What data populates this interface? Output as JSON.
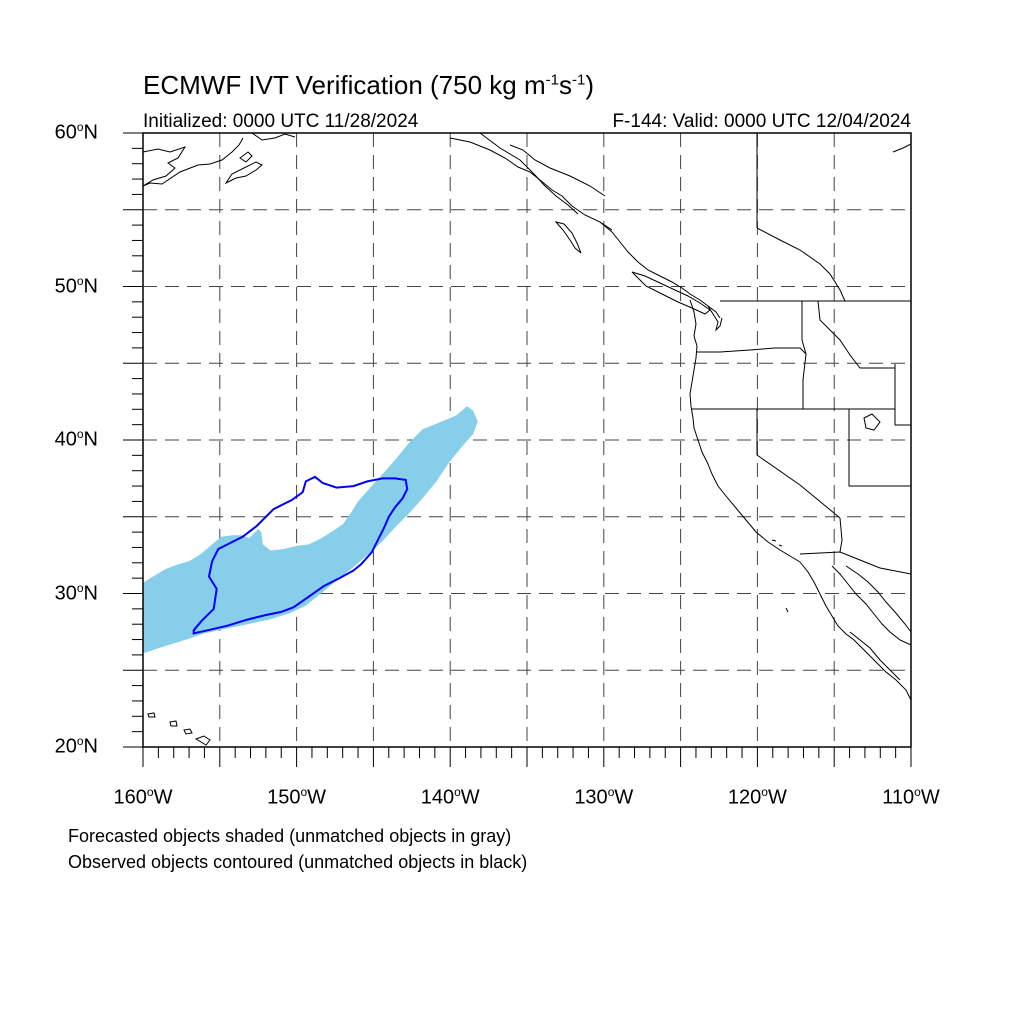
{
  "header": {
    "title_main": "ECMWF IVT Verification (750 kg m",
    "title_sup1": "-1",
    "title_mid": "s",
    "title_sup2": "-1",
    "title_end": ")",
    "initialized": "Initialized: 0000 UTC 11/28/2024",
    "valid": "F-144: Valid: 0000 UTC 12/04/2024"
  },
  "map": {
    "lon_range": [
      -160,
      -110
    ],
    "lat_range": [
      20,
      60
    ],
    "grid_lon_step": 5,
    "grid_lat_step": 5,
    "grid": "dashed",
    "land_color": "#ffffff",
    "coast_color": "#000000"
  },
  "axes": {
    "y_labels": [
      {
        "lat": 60,
        "num": "60",
        "sup": "o",
        "dir": "N"
      },
      {
        "lat": 50,
        "num": "50",
        "sup": "o",
        "dir": "N"
      },
      {
        "lat": 40,
        "num": "40",
        "sup": "o",
        "dir": "N"
      },
      {
        "lat": 30,
        "num": "30",
        "sup": "o",
        "dir": "N"
      },
      {
        "lat": 20,
        "num": "20",
        "sup": "o",
        "dir": "N"
      }
    ],
    "x_labels": [
      {
        "lon": -160,
        "num": "160",
        "sup": "o",
        "dir": "W"
      },
      {
        "lon": -150,
        "num": "150",
        "sup": "o",
        "dir": "W"
      },
      {
        "lon": -140,
        "num": "140",
        "sup": "o",
        "dir": "W"
      },
      {
        "lon": -130,
        "num": "130",
        "sup": "o",
        "dir": "W"
      },
      {
        "lon": -120,
        "num": "120",
        "sup": "o",
        "dir": "W"
      },
      {
        "lon": -110,
        "num": "110",
        "sup": "o",
        "dir": "W"
      }
    ]
  },
  "objects": {
    "forecast_color": "#87ceea",
    "observed_color": "#0000ff",
    "forecast_shape": [
      [
        -160,
        30.7
      ],
      [
        -159.2,
        31.2
      ],
      [
        -158.5,
        31.6
      ],
      [
        -157.7,
        31.9
      ],
      [
        -157,
        32.1
      ],
      [
        -156.2,
        32.6
      ],
      [
        -155.5,
        33.2
      ],
      [
        -154.9,
        33.7
      ],
      [
        -154.2,
        33.8
      ],
      [
        -153.5,
        33.8
      ],
      [
        -153.1,
        33.6
      ],
      [
        -152.5,
        34.2
      ],
      [
        -152.3,
        34.0
      ],
      [
        -152.2,
        33.2
      ],
      [
        -151.7,
        32.8
      ],
      [
        -150.8,
        32.9
      ],
      [
        -150,
        33.1
      ],
      [
        -149.2,
        33.2
      ],
      [
        -148.4,
        33.6
      ],
      [
        -147.6,
        34.1
      ],
      [
        -147.0,
        34.5
      ],
      [
        -146.5,
        35.2
      ],
      [
        -146.0,
        36.0
      ],
      [
        -145.2,
        36.9
      ],
      [
        -144.3,
        37.9
      ],
      [
        -143.5,
        38.8
      ],
      [
        -142.7,
        39.8
      ],
      [
        -141.8,
        40.7
      ],
      [
        -140.8,
        41.1
      ],
      [
        -139.6,
        41.6
      ],
      [
        -138.9,
        42.2
      ],
      [
        -138.5,
        41.9
      ],
      [
        -138.2,
        41.2
      ],
      [
        -138.5,
        40.4
      ],
      [
        -139.3,
        39.5
      ],
      [
        -140.1,
        38.5
      ],
      [
        -140.9,
        37.3
      ],
      [
        -141.8,
        36.2
      ],
      [
        -142.7,
        35.2
      ],
      [
        -143.6,
        34.3
      ],
      [
        -144.4,
        33.4
      ],
      [
        -145.3,
        32.6
      ],
      [
        -146.2,
        31.8
      ],
      [
        -147.2,
        31.0
      ],
      [
        -148.3,
        30.1
      ],
      [
        -149.4,
        29.2
      ],
      [
        -150.5,
        28.7
      ],
      [
        -151.8,
        28.3
      ],
      [
        -153.2,
        28.0
      ],
      [
        -154.6,
        27.7
      ],
      [
        -156.0,
        27.4
      ],
      [
        -157.5,
        26.9
      ],
      [
        -158.8,
        26.5
      ],
      [
        -160,
        26.1
      ]
    ],
    "observed_contour": [
      [
        -156.7,
        27.4
      ],
      [
        -155.8,
        27.6
      ],
      [
        -154.5,
        27.9
      ],
      [
        -153.2,
        28.3
      ],
      [
        -152.0,
        28.6
      ],
      [
        -151.0,
        28.8
      ],
      [
        -150.2,
        29.1
      ],
      [
        -149.2,
        29.8
      ],
      [
        -148.2,
        30.5
      ],
      [
        -147.2,
        31.0
      ],
      [
        -146.3,
        31.5
      ],
      [
        -145.8,
        31.9
      ],
      [
        -145.1,
        32.7
      ],
      [
        -144.7,
        33.5
      ],
      [
        -144.3,
        34.3
      ],
      [
        -144.0,
        35.0
      ],
      [
        -143.6,
        35.6
      ],
      [
        -143.1,
        36.2
      ],
      [
        -142.8,
        36.8
      ],
      [
        -142.9,
        37.4
      ],
      [
        -143.6,
        37.5
      ],
      [
        -144.4,
        37.5
      ],
      [
        -145.4,
        37.3
      ],
      [
        -146.3,
        37.0
      ],
      [
        -147.4,
        36.9
      ],
      [
        -148.3,
        37.2
      ],
      [
        -148.8,
        37.6
      ],
      [
        -149.4,
        37.3
      ],
      [
        -149.6,
        36.6
      ],
      [
        -150.3,
        36.1
      ],
      [
        -151.5,
        35.5
      ],
      [
        -152.6,
        34.4
      ],
      [
        -153.5,
        33.7
      ],
      [
        -154.5,
        33.2
      ],
      [
        -155.1,
        32.9
      ],
      [
        -155.5,
        32.1
      ],
      [
        -155.7,
        31.1
      ],
      [
        -155.2,
        30.3
      ],
      [
        -155.4,
        29.0
      ],
      [
        -156.2,
        28.2
      ],
      [
        -156.7,
        27.6
      ],
      [
        -156.7,
        27.4
      ]
    ]
  },
  "caption": {
    "line1": "Forecasted objects shaded (unmatched objects in gray)",
    "line2": "Observed objects contoured (unmatched objects in black)"
  }
}
